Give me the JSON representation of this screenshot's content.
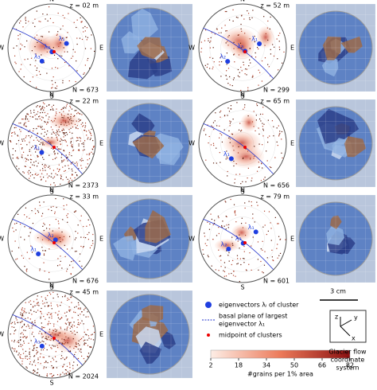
{
  "panels": [
    {
      "depth": "z = 02 m",
      "count": "N = 673",
      "dirs": [
        "N",
        "E",
        "S",
        "W"
      ],
      "lambdas": [
        "λ₃",
        "λ₂",
        "λ₁"
      ]
    },
    {
      "depth": "z = 22 m",
      "count": "N = 2373",
      "dirs": [
        "N",
        "E",
        "S",
        "W"
      ],
      "lambdas": [
        "λ₁"
      ]
    },
    {
      "depth": "z = 33 m",
      "count": "N = 676",
      "dirs": [
        "N",
        "E",
        "S",
        "W"
      ],
      "lambdas": [
        "λ₁",
        "λ₂"
      ]
    },
    {
      "depth": "z = 45 m",
      "count": "N = 2024",
      "dirs": [
        "N",
        "E",
        "S",
        "W"
      ],
      "lambdas": [
        "λ₁"
      ]
    },
    {
      "depth": "z = 52 m",
      "count": "N = 299",
      "dirs": [
        "N",
        "E",
        "S",
        "W"
      ],
      "lambdas": [
        "λ₂",
        "λ₃",
        "λ₁"
      ]
    },
    {
      "depth": "z = 65 m",
      "count": "N = 656",
      "dirs": [
        "N",
        "E",
        "S",
        "W"
      ],
      "lambdas": [
        "λ₁"
      ]
    },
    {
      "depth": "z = 79 m",
      "count": "N = 601",
      "dirs": [
        "N",
        "E",
        "S",
        "W"
      ],
      "lambdas": [
        "λ₂",
        "λ₃",
        "λ₁"
      ]
    }
  ],
  "legend": {
    "eigen": "eigenvectors λᵢ of cluster",
    "basal1": "basal plane of largest",
    "basal2": "eigenvector λ₁",
    "mid": "midpoint of clusters"
  },
  "colorbar": {
    "ticks": [
      2,
      18,
      34,
      50,
      66,
      82
    ],
    "label": "#grains per 1% area"
  },
  "scale": "3 cm",
  "axes": {
    "z": "z",
    "y": "y",
    "x": "x",
    "caption": [
      "Glacier flow",
      "coordinate",
      "system"
    ]
  }
}
